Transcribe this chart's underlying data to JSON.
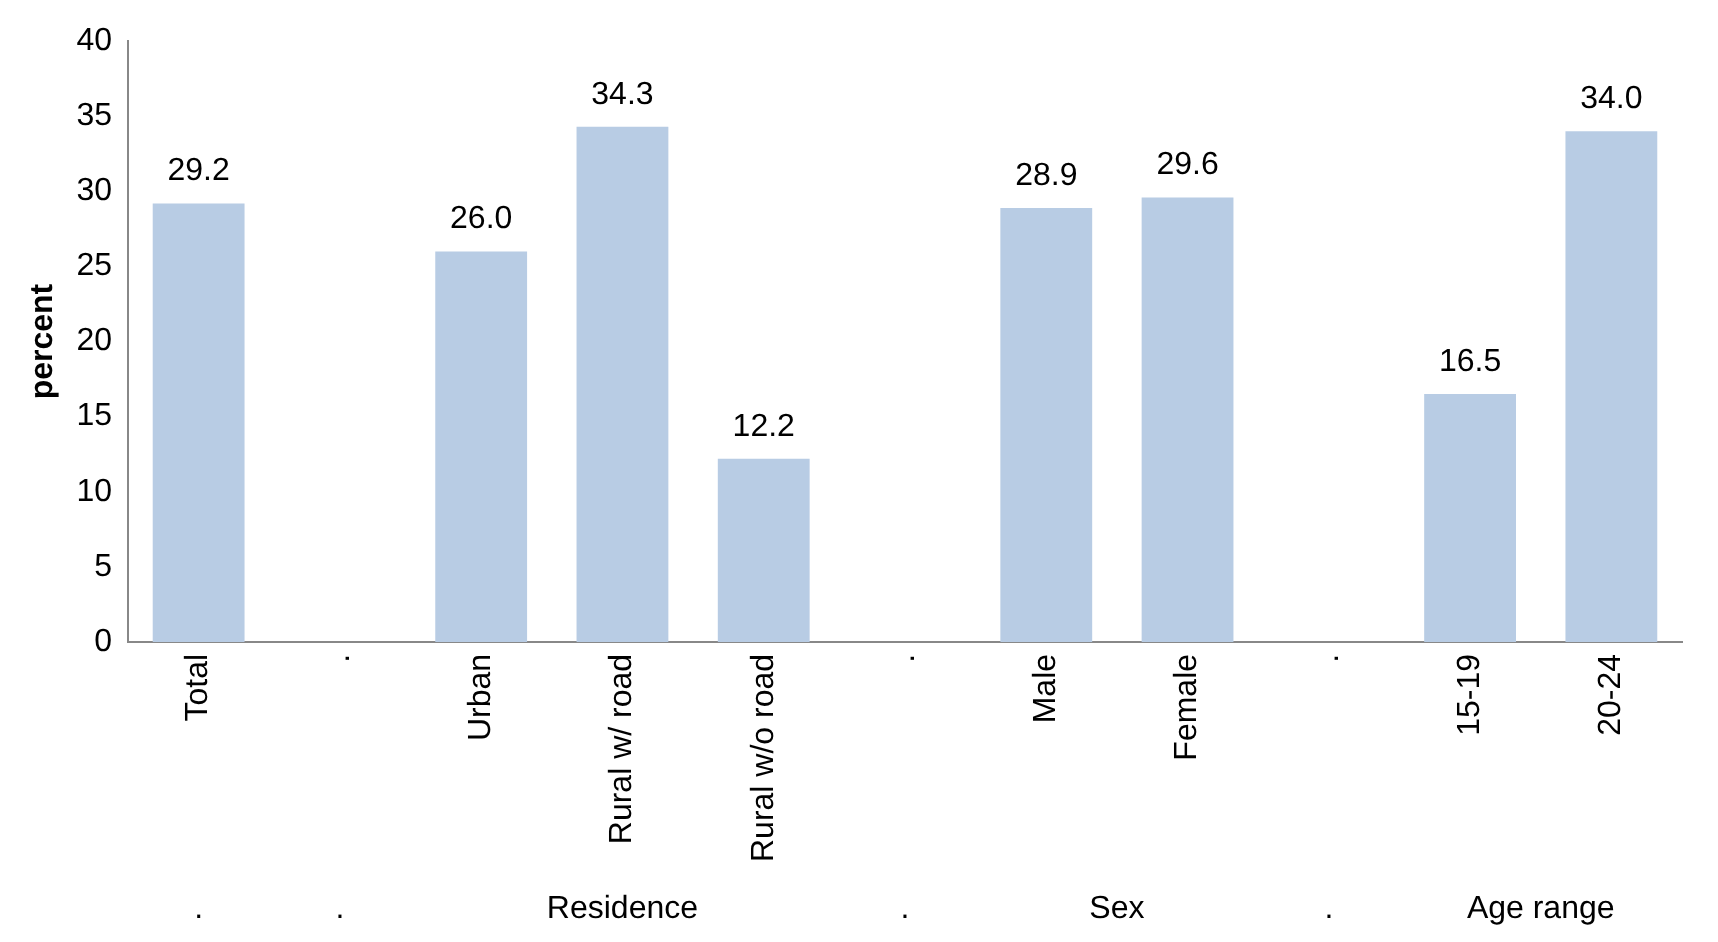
{
  "chart_data": {
    "type": "bar",
    "ylabel": "percent",
    "categories": [
      "Total",
      ".",
      "Urban",
      "Rural w/ road",
      "Rural w/o road",
      ".",
      "Male",
      "Female",
      ".",
      "15-19",
      "20-24"
    ],
    "values": [
      29.2,
      null,
      26.0,
      34.3,
      12.2,
      null,
      28.9,
      29.6,
      null,
      16.5,
      34.0
    ],
    "value_labels": [
      "29.2",
      null,
      "26.0",
      "34.3",
      "12.2",
      null,
      "28.9",
      "29.6",
      null,
      "16.5",
      "34.0"
    ],
    "color": "#b8cce4",
    "ylim": [
      0,
      40
    ],
    "yticks": [
      0,
      5,
      10,
      15,
      20,
      25,
      30,
      35,
      40
    ],
    "grid": false,
    "legend": false,
    "annotations": [
      ".",
      ".",
      "Residence",
      ".",
      "Sex",
      ".",
      "Age range"
    ]
  }
}
